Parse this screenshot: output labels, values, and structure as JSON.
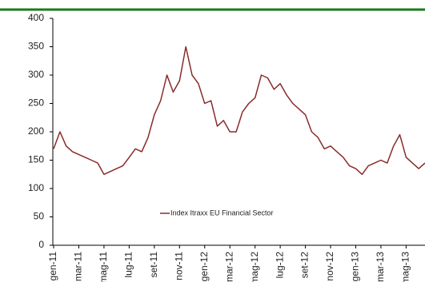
{
  "chart_data": {
    "type": "line",
    "categories": [
      "gen-11",
      null,
      null,
      null,
      "mar-11",
      null,
      null,
      null,
      "mag-11",
      null,
      null,
      null,
      "lug-11",
      null,
      null,
      null,
      "set-11",
      null,
      null,
      null,
      "nov-11",
      null,
      null,
      null,
      "gen-12",
      null,
      null,
      null,
      "mar-12",
      null,
      null,
      null,
      "mag-12",
      null,
      null,
      null,
      "lug-12",
      null,
      null,
      null,
      "set-12",
      null,
      null,
      null,
      "nov-12",
      null,
      null,
      null,
      "gen-13",
      null,
      null,
      null,
      "mar-13",
      null,
      null,
      null,
      "mag-13",
      null,
      null,
      null
    ],
    "series": [
      {
        "name": "Index Itraxx EU Financial Sector",
        "color": "#8b2a2a",
        "values": [
          170,
          200,
          175,
          165,
          160,
          155,
          150,
          145,
          125,
          130,
          135,
          140,
          155,
          170,
          165,
          190,
          230,
          255,
          300,
          270,
          290,
          350,
          300,
          285,
          250,
          255,
          210,
          220,
          200,
          200,
          235,
          250,
          260,
          300,
          295,
          275,
          285,
          265,
          250,
          240,
          230,
          200,
          190,
          170,
          175,
          165,
          155,
          140,
          135,
          125,
          140,
          145,
          150,
          145,
          175,
          195,
          155,
          145,
          135,
          145
        ]
      }
    ],
    "ylim": [
      0,
      400
    ],
    "yticks": [
      0,
      50,
      100,
      150,
      200,
      250,
      300,
      350,
      400
    ]
  }
}
